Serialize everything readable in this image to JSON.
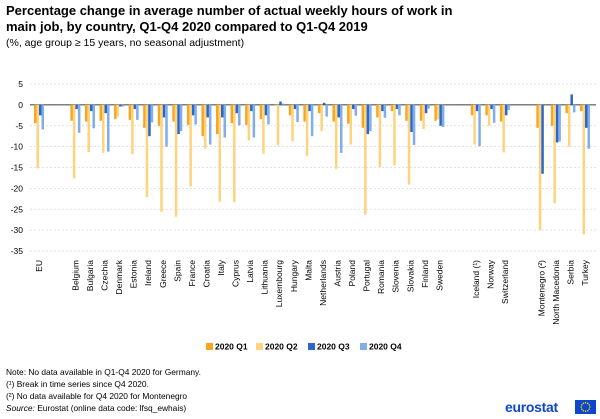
{
  "title": "Percentage change in average number of actual weekly hours of work in main job, by country, Q1-Q4 2020 compared to Q1-Q4 2019",
  "subtitle": "(%, age group ≥ 15 years, no seasonal adjustment)",
  "notes": {
    "line1": "Note: No data available in Q1-Q4 2020 for Germany.",
    "line2": "(¹) Break in time series since Q4 2020.",
    "line3": "(²) No data available for Q4 2020 for Montenegro",
    "source_label": "Source:",
    "source_text": "Eurostat (online data code: lfsq_ewhais)"
  },
  "logo": {
    "text": "eurostat",
    "flag_icon": "eu-flag-icon"
  },
  "colors": {
    "q1": "#f6a623",
    "q2": "#fed37e",
    "q3": "#2a67c9",
    "q4": "#7faeea"
  },
  "chart_data": {
    "type": "bar",
    "ylim": [
      -35,
      5
    ],
    "yticks": [
      5,
      0,
      -5,
      -10,
      -15,
      -20,
      -25,
      -30,
      -35
    ],
    "grid": true,
    "legend_position": "bottom",
    "categories": [
      "EU",
      "Belgium",
      "Bulgaria",
      "Czechia",
      "Denmark",
      "Estonia",
      "Ireland",
      "Greece",
      "Spain",
      "France",
      "Croatia",
      "Italy",
      "Cyprus",
      "Latvia",
      "Lithuania",
      "Luxembourg",
      "Hungary",
      "Malta",
      "Netherlands",
      "Austria",
      "Poland",
      "Portugal",
      "Romania",
      "Slovenia",
      "Slovakia",
      "Finland",
      "Sweden",
      "Iceland (¹)",
      "Norway",
      "Switzerland",
      "Montenegro (²)",
      "North Macedonia",
      "Serbia",
      "Turkey"
    ],
    "group_breaks_after": [
      "EU",
      "Sweden",
      "Switzerland"
    ],
    "series": [
      {
        "name": "2020 Q1",
        "values": [
          -4.4,
          -3.8,
          -4.0,
          -3.8,
          -3.4,
          -3.6,
          -5.5,
          -5.0,
          -4.0,
          -4.8,
          -7.5,
          -7.0,
          -4.4,
          -4.8,
          -3.4,
          0.0,
          -2.5,
          -4.0,
          -2.0,
          -4.0,
          -4.5,
          -5.5,
          -3.0,
          -1.5,
          -3.8,
          -3.8,
          -3.8,
          -2.5,
          -2.5,
          -4.0,
          -5.5,
          -5.0,
          -2.0,
          -1.5
        ]
      },
      {
        "name": "2020 Q2",
        "values": [
          -15.2,
          -17.6,
          -11.3,
          -11.5,
          -2.8,
          -11.8,
          -22.1,
          -25.6,
          -26.8,
          -19.5,
          -10.5,
          -23.2,
          -23.3,
          -8.5,
          -11.7,
          -9.7,
          -8.7,
          -12.2,
          -6.3,
          -15.3,
          -9.5,
          -26.3,
          -14.9,
          -14.5,
          -19.1,
          -5.8,
          -3.5,
          -9.5,
          -5.0,
          -11.4,
          -30.0,
          -23.6,
          -10.0,
          -31.0
        ]
      },
      {
        "name": "2020 Q3",
        "values": [
          -2.5,
          -1.0,
          -1.5,
          -2.0,
          -0.4,
          -1.0,
          -7.5,
          -3.0,
          -7.0,
          -2.5,
          -3.0,
          -3.0,
          -2.0,
          -1.5,
          -2.5,
          0.8,
          -1.0,
          -1.5,
          0.5,
          -3.0,
          -1.0,
          -7.0,
          -1.5,
          -1.0,
          -6.5,
          -2.0,
          -5.0,
          -1.5,
          -1.0,
          -2.5,
          -16.5,
          -9.0,
          2.5,
          -5.5
        ]
      },
      {
        "name": "2020 Q4",
        "values": [
          -5.9,
          -6.7,
          -5.6,
          -11.2,
          -0.4,
          -3.6,
          -4.2,
          -10.0,
          -6.3,
          -4.7,
          -9.5,
          -7.8,
          -4.9,
          -7.8,
          -4.7,
          0.3,
          -4.1,
          -7.5,
          -2.8,
          -11.5,
          -2.6,
          -6.3,
          -3.1,
          -2.5,
          -9.6,
          -0.9,
          -5.3,
          -9.9,
          -4.3,
          -1.2,
          null,
          -8.8,
          -1.8,
          -10.5
        ]
      }
    ]
  }
}
